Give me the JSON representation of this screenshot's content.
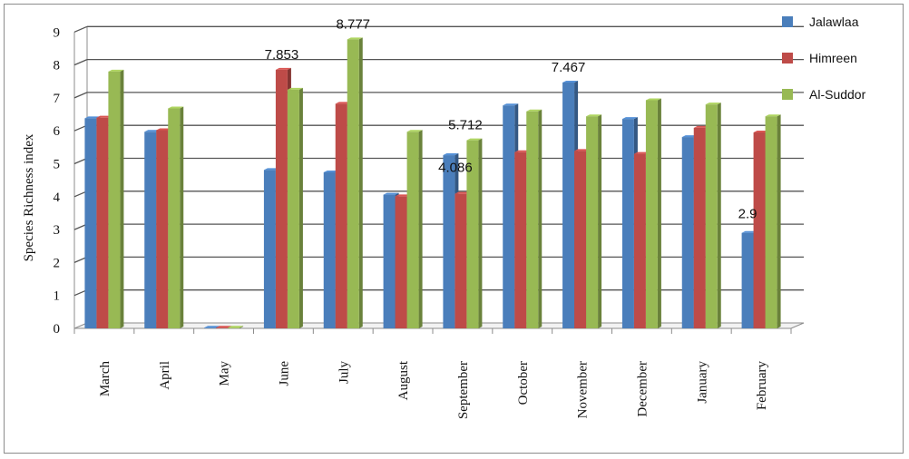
{
  "chart_data": {
    "type": "bar",
    "title": "",
    "xlabel": "",
    "ylabel": "Species Richness index",
    "ylim": [
      0,
      9
    ],
    "yticks": [
      "0",
      "1",
      "2",
      "3",
      "4",
      "5",
      "6",
      "7",
      "8",
      "9"
    ],
    "grid": true,
    "legend_position": "right",
    "categories": [
      "March",
      "April",
      "May",
      "June",
      "July",
      "August",
      "September",
      "October",
      "November",
      "December",
      "January",
      "February"
    ],
    "series": [
      {
        "name": "Jalawlaa",
        "color": "#4a7ebb",
        "values": [
          6.38,
          5.97,
          0.02,
          4.81,
          4.74,
          4.06,
          5.26,
          6.77,
          7.467,
          6.36,
          5.81,
          2.9
        ]
      },
      {
        "name": "Himreen",
        "color": "#be4b48",
        "values": [
          6.4,
          6.02,
          0.02,
          7.853,
          6.82,
          4.01,
          4.086,
          5.35,
          5.39,
          5.3,
          6.09,
          5.95
        ]
      },
      {
        "name": "Al-Suddor",
        "color": "#98b954",
        "values": [
          7.8,
          6.68,
          0.02,
          7.25,
          8.777,
          5.97,
          5.712,
          6.59,
          6.44,
          6.93,
          6.8,
          6.44
        ]
      }
    ],
    "data_labels": [
      {
        "text": "7.853",
        "series": 1,
        "category": 3
      },
      {
        "text": "8.777",
        "series": 2,
        "category": 4
      },
      {
        "text": "5.712",
        "series": 2,
        "category": 6
      },
      {
        "text": "4.086",
        "series": 1,
        "category": 6
      },
      {
        "text": "7.467",
        "series": 0,
        "category": 8
      },
      {
        "text": "2.9",
        "series": 0,
        "category": 11
      }
    ]
  }
}
